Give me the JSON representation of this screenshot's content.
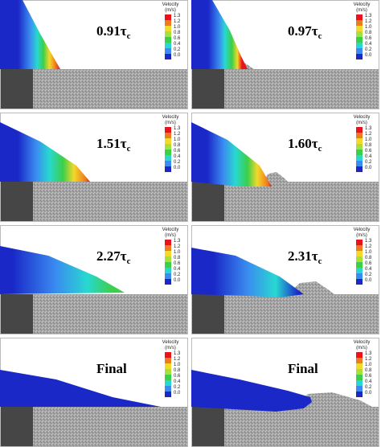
{
  "panels": [
    {
      "label": "0.91τ",
      "subscript": "c"
    },
    {
      "label": "0.97τ",
      "subscript": "c"
    },
    {
      "label": "1.51τ",
      "subscript": "c"
    },
    {
      "label": "1.60τ",
      "subscript": "c"
    },
    {
      "label": "2.27τ",
      "subscript": "c"
    },
    {
      "label": "2.31τ",
      "subscript": "c"
    },
    {
      "label": "Final"
    },
    {
      "label": "Final"
    }
  ],
  "colorbar": {
    "title": "Velocity",
    "unit": "(m/s)",
    "ticks": [
      "1.3",
      "1.2",
      "1.0",
      "0.8",
      "0.6",
      "0.4",
      "0.2",
      "0.0"
    ],
    "colors": [
      "#e8141a",
      "#f07a1e",
      "#f2d92a",
      "#a8e03a",
      "#3ccf4a",
      "#28d8d0",
      "#3a8cf0",
      "#1a28c8"
    ]
  }
}
